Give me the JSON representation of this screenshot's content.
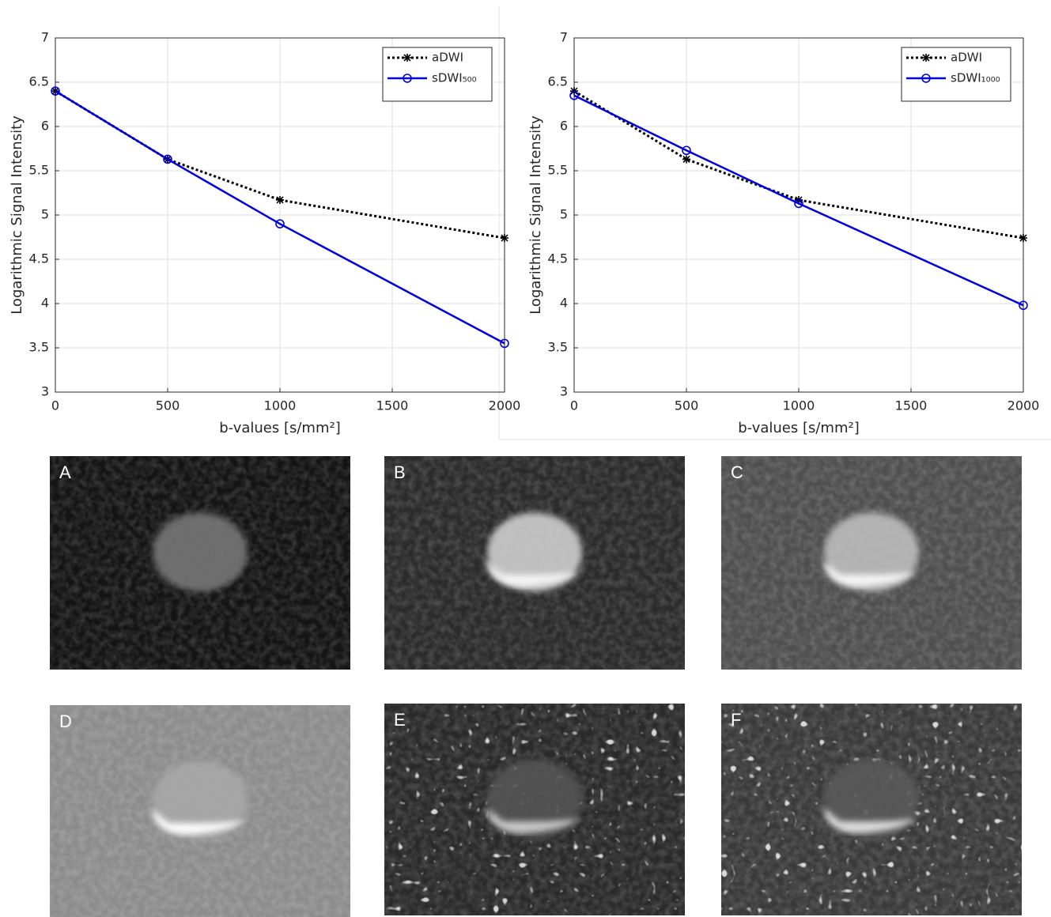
{
  "chart_data": [
    {
      "type": "line",
      "ylabel": "Logarithmic Signal Intensity",
      "xlabel": "b-values [s/mm²]",
      "x": [
        0,
        500,
        1000,
        2000
      ],
      "xlim": [
        0,
        2000
      ],
      "xticks": [
        0,
        500,
        1000,
        1500,
        2000
      ],
      "ylim": [
        3,
        7
      ],
      "yticks": [
        3,
        3.5,
        4,
        4.5,
        5,
        5.5,
        6,
        6.5,
        7
      ],
      "grid": true,
      "legend": "upper right",
      "series": [
        {
          "name": "aDWI",
          "color": "#000000",
          "line_style": "dotted",
          "marker": "star",
          "values": [
            6.4,
            5.63,
            5.17,
            4.74
          ]
        },
        {
          "name": "sDWI₅₀₀",
          "color": "#0000e0",
          "line_style": "solid",
          "marker": "circle",
          "values": [
            6.4,
            5.63,
            4.9,
            3.55
          ]
        }
      ]
    },
    {
      "type": "line",
      "ylabel": "Logarithmic Signal Intensity",
      "xlabel": "b-values [s/mm²]",
      "x": [
        0,
        500,
        1000,
        2000
      ],
      "xlim": [
        0,
        2000
      ],
      "xticks": [
        0,
        500,
        1000,
        1500,
        2000
      ],
      "ylim": [
        3,
        7
      ],
      "yticks": [
        3,
        3.5,
        4,
        4.5,
        5,
        5.5,
        6,
        6.5,
        7
      ],
      "grid": true,
      "legend": "upper right",
      "series": [
        {
          "name": "aDWI",
          "color": "#000000",
          "line_style": "dotted",
          "marker": "star",
          "values": [
            6.4,
            5.63,
            5.17,
            4.74
          ]
        },
        {
          "name": "sDWI₁₀₀₀",
          "color": "#0000e0",
          "line_style": "solid",
          "marker": "circle",
          "values": [
            6.35,
            5.73,
            5.13,
            3.98
          ]
        }
      ]
    }
  ],
  "panels": [
    "A",
    "B",
    "C",
    "D",
    "E",
    "F"
  ]
}
